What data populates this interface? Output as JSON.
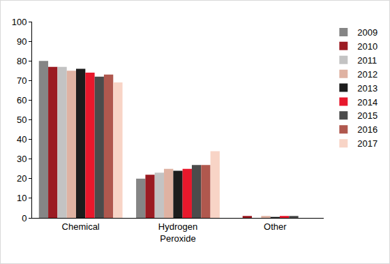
{
  "chart_data": {
    "type": "bar",
    "categories": [
      "Chemical",
      "Hydrogen Peroxide",
      "Other"
    ],
    "series": [
      {
        "name": "2009",
        "color": "#858585",
        "values": [
          80,
          20,
          0
        ]
      },
      {
        "name": "2010",
        "color": "#9b1b22",
        "values": [
          77,
          22,
          1
        ]
      },
      {
        "name": "2011",
        "color": "#c3c3c3",
        "values": [
          77,
          23,
          0
        ]
      },
      {
        "name": "2012",
        "color": "#dfb2a2",
        "values": [
          75,
          25,
          1
        ]
      },
      {
        "name": "2013",
        "color": "#1c1c1c",
        "values": [
          76,
          24,
          0.5
        ]
      },
      {
        "name": "2014",
        "color": "#e8182c",
        "values": [
          74,
          25,
          1
        ]
      },
      {
        "name": "2015",
        "color": "#4b4b4b",
        "values": [
          72,
          27,
          1
        ]
      },
      {
        "name": "2016",
        "color": "#b0584e",
        "values": [
          73,
          27,
          0
        ]
      },
      {
        "name": "2017",
        "color": "#f8d4c6",
        "values": [
          69,
          34,
          0
        ]
      }
    ],
    "ylim": [
      0,
      100
    ],
    "yticks": [
      0,
      10,
      20,
      30,
      40,
      50,
      60,
      70,
      80,
      90,
      100
    ],
    "grid": false,
    "legend": "top right"
  }
}
